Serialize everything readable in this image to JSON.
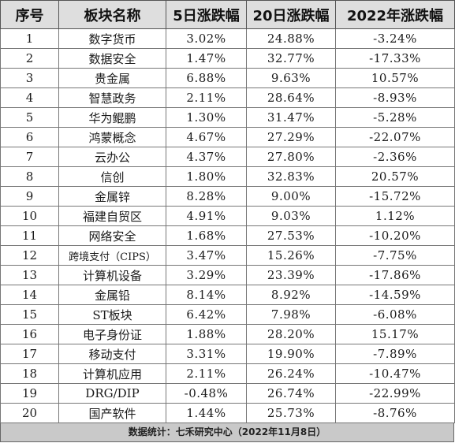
{
  "table": {
    "headers": [
      "序号",
      "板块名称",
      "5日涨跌幅",
      "20日涨跌幅",
      "2022年涨跌幅"
    ],
    "rows": [
      {
        "idx": "1",
        "name": "数字货币",
        "d5": "3.02%",
        "d20": "24.88%",
        "ytd": "-3.24%"
      },
      {
        "idx": "2",
        "name": "数据安全",
        "d5": "1.47%",
        "d20": "32.77%",
        "ytd": "-17.33%"
      },
      {
        "idx": "3",
        "name": "贵金属",
        "d5": "6.88%",
        "d20": "9.63%",
        "ytd": "10.57%"
      },
      {
        "idx": "4",
        "name": "智慧政务",
        "d5": "2.11%",
        "d20": "28.64%",
        "ytd": "-8.93%"
      },
      {
        "idx": "5",
        "name": "华为鲲鹏",
        "d5": "1.30%",
        "d20": "31.47%",
        "ytd": "-5.28%"
      },
      {
        "idx": "6",
        "name": "鸿蒙概念",
        "d5": "4.67%",
        "d20": "27.29%",
        "ytd": "-22.07%"
      },
      {
        "idx": "7",
        "name": "云办公",
        "d5": "4.37%",
        "d20": "27.80%",
        "ytd": "-2.36%"
      },
      {
        "idx": "8",
        "name": "信创",
        "d5": "1.80%",
        "d20": "32.83%",
        "ytd": "20.57%"
      },
      {
        "idx": "9",
        "name": "金属锌",
        "d5": "8.28%",
        "d20": "9.00%",
        "ytd": "-15.72%"
      },
      {
        "idx": "10",
        "name": "福建自贸区",
        "d5": "4.91%",
        "d20": "9.03%",
        "ytd": "1.12%"
      },
      {
        "idx": "11",
        "name": "网络安全",
        "d5": "1.68%",
        "d20": "27.53%",
        "ytd": "-10.20%"
      },
      {
        "idx": "12",
        "name": "跨境支付（CIPS）",
        "d5": "3.47%",
        "d20": "15.26%",
        "ytd": "-7.75%"
      },
      {
        "idx": "13",
        "name": "计算机设备",
        "d5": "3.29%",
        "d20": "23.39%",
        "ytd": "-17.86%"
      },
      {
        "idx": "14",
        "name": "金属铅",
        "d5": "8.14%",
        "d20": "8.92%",
        "ytd": "-14.59%"
      },
      {
        "idx": "15",
        "name": "ST板块",
        "d5": "6.42%",
        "d20": "7.98%",
        "ytd": "-6.08%"
      },
      {
        "idx": "16",
        "name": "电子身份证",
        "d5": "1.88%",
        "d20": "28.20%",
        "ytd": "15.17%"
      },
      {
        "idx": "17",
        "name": "移动支付",
        "d5": "3.31%",
        "d20": "19.90%",
        "ytd": "-7.89%"
      },
      {
        "idx": "18",
        "name": "计算机应用",
        "d5": "2.11%",
        "d20": "26.24%",
        "ytd": "-10.47%"
      },
      {
        "idx": "19",
        "name": "DRG/DIP",
        "d5": "-0.48%",
        "d20": "26.74%",
        "ytd": "-22.99%"
      },
      {
        "idx": "20",
        "name": "国产软件",
        "d5": "1.44%",
        "d20": "25.73%",
        "ytd": "-8.76%"
      }
    ]
  },
  "footer": {
    "text": "数据统计：七禾研究中心（2022年11月8日）"
  },
  "colors": {
    "header_bg": "#dedede",
    "footer_bg": "#c9c9c9",
    "border": "#777777"
  }
}
